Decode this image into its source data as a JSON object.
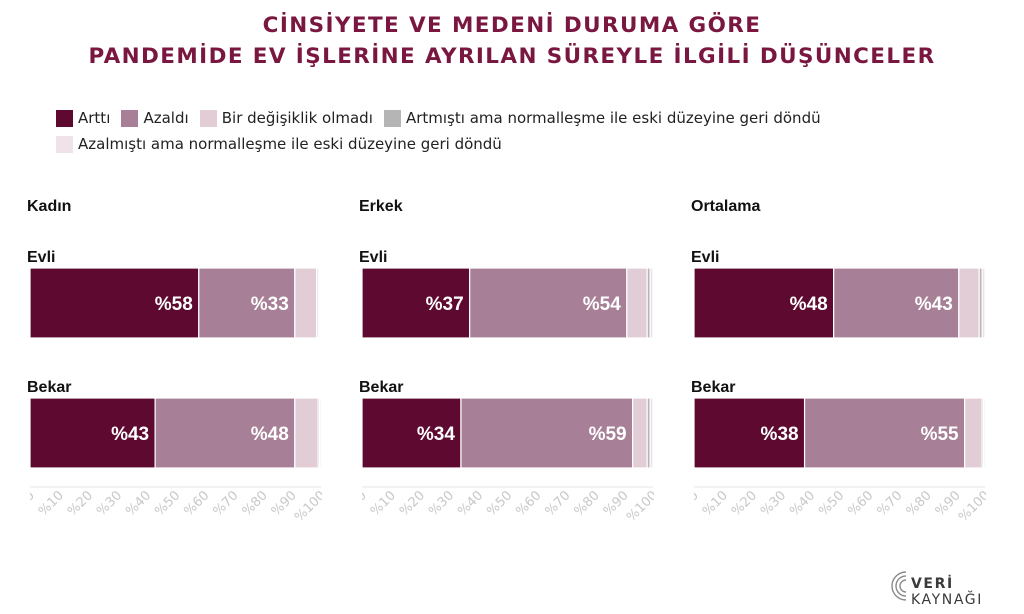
{
  "title": {
    "line1": "CİNSİYETE VE MEDENİ DURUMA GÖRE",
    "line2": "PANDEMİDE EV İŞLERİNE AYRILAN SÜREYLE İLGİLİ DÜŞÜNCELER"
  },
  "legend": [
    {
      "label": "Arttı",
      "color": "#5e0a30"
    },
    {
      "label": "Azaldı",
      "color": "#a77f96"
    },
    {
      "label": "Bir değişiklik olmadı",
      "color": "#e2cdd7"
    },
    {
      "label": "Artmıştı ama normalleşme ile eski düzeyine geri döndü",
      "color": "#b5b5b5"
    },
    {
      "label": "Azalmıştı ama normalleşme ile eski düzeyine geri döndü",
      "color": "#efe3e9"
    }
  ],
  "logo": {
    "text_bold": "VERİ",
    "text_rest": " KAYNAĞI"
  },
  "chart_data": [
    {
      "type": "bar",
      "orientation": "horizontal",
      "stacked": true,
      "title": "Kadın",
      "categories": [
        "Evli",
        "Bekar"
      ],
      "series": [
        {
          "name": "Arttı",
          "values": [
            58,
            43
          ]
        },
        {
          "name": "Azaldı",
          "values": [
            33,
            48
          ]
        },
        {
          "name": "Bir değişiklik olmadı",
          "values": [
            7.5,
            8
          ]
        },
        {
          "name": "Artmıştı ama normalleşme ile eski düzeyine geri döndü",
          "values": [
            0.5,
            0.5
          ]
        },
        {
          "name": "Azalmıştı ama normalleşme ile eski düzeyine geri döndü",
          "values": [
            0.5,
            0.5
          ]
        }
      ],
      "data_labels": [
        [
          "%58",
          "%33"
        ],
        [
          "%43",
          "%48"
        ]
      ],
      "x_ticks": [
        "%0",
        "%10",
        "%20",
        "%30",
        "%40",
        "%50",
        "%60",
        "%70",
        "%80",
        "%90",
        "%100"
      ],
      "xlim": [
        0,
        100
      ]
    },
    {
      "type": "bar",
      "orientation": "horizontal",
      "stacked": true,
      "title": "Erkek",
      "categories": [
        "Evli",
        "Bekar"
      ],
      "series": [
        {
          "name": "Arttı",
          "values": [
            37,
            34
          ]
        },
        {
          "name": "Azaldı",
          "values": [
            54,
            59
          ]
        },
        {
          "name": "Bir değişiklik olmadı",
          "values": [
            7,
            5
          ]
        },
        {
          "name": "Artmıştı ama normalleşme ile eski düzeyine geri döndü",
          "values": [
            1,
            1
          ]
        },
        {
          "name": "Azalmıştı ama normalleşme ile eski düzeyine geri döndü",
          "values": [
            1,
            1
          ]
        }
      ],
      "data_labels": [
        [
          "%37",
          "%54"
        ],
        [
          "%34",
          "%59"
        ]
      ],
      "x_ticks": [
        "%0",
        "%10",
        "%20",
        "%30",
        "%40",
        "%50",
        "%60",
        "%70",
        "%80",
        "%90",
        "%100"
      ],
      "xlim": [
        0,
        100
      ]
    },
    {
      "type": "bar",
      "orientation": "horizontal",
      "stacked": true,
      "title": "Ortalama",
      "categories": [
        "Evli",
        "Bekar"
      ],
      "series": [
        {
          "name": "Arttı",
          "values": [
            48,
            38
          ]
        },
        {
          "name": "Azaldı",
          "values": [
            43,
            55
          ]
        },
        {
          "name": "Bir değişiklik olmadı",
          "values": [
            7,
            6
          ]
        },
        {
          "name": "Artmıştı ama normalleşme ile eski düzeyine geri döndü",
          "values": [
            1,
            0.5
          ]
        },
        {
          "name": "Azalmıştı ama normalleşme ile eski düzeyine geri döndü",
          "values": [
            1,
            0.5
          ]
        }
      ],
      "data_labels": [
        [
          "%48",
          "%43"
        ],
        [
          "%38",
          "%55"
        ]
      ],
      "x_ticks": [
        "%0",
        "%10",
        "%20",
        "%30",
        "%40",
        "%50",
        "%60",
        "%70",
        "%80",
        "%90",
        "%100"
      ],
      "xlim": [
        0,
        100
      ]
    }
  ]
}
